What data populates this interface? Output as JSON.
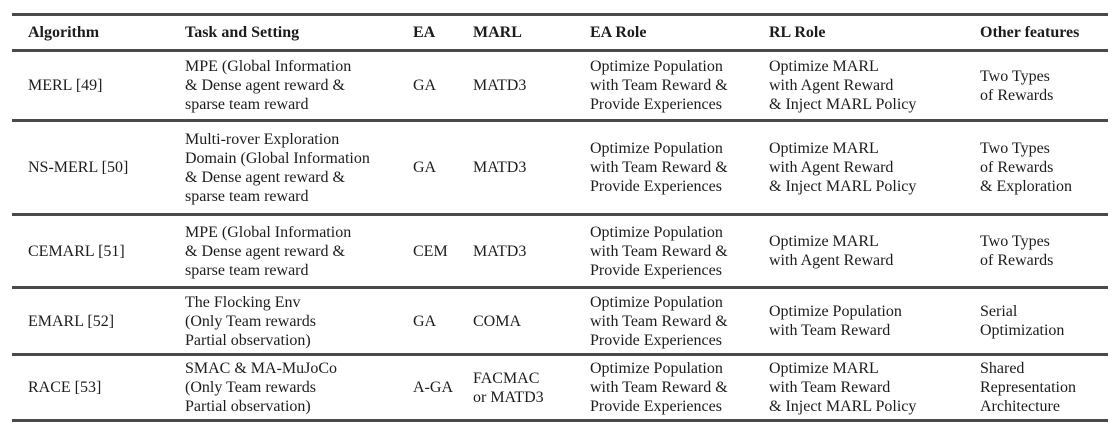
{
  "table": {
    "columns": [
      "Algorithm",
      "Task and Setting",
      "EA",
      "MARL",
      "EA Role",
      "RL Role",
      "Other features"
    ],
    "rows": [
      {
        "algorithm": "MERL [49]",
        "task": "MPE (Global Information\n& Dense agent reward &\nsparse team reward",
        "ea": "GA",
        "marl": "MATD3",
        "ea_role": "Optimize Population\nwith Team Reward &\nProvide Experiences",
        "rl_role": "Optimize MARL\nwith Agent Reward\n& Inject MARL Policy",
        "other": "Two Types\nof Rewards"
      },
      {
        "algorithm": "NS-MERL [50]",
        "task": "Multi-rover Exploration\nDomain (Global Information\n& Dense agent reward &\nsparse team reward",
        "ea": "GA",
        "marl": "MATD3",
        "ea_role": "Optimize Population\nwith Team Reward &\nProvide Experiences",
        "rl_role": "Optimize MARL\nwith Agent Reward\n& Inject MARL Policy",
        "other": "Two Types\nof Rewards\n& Exploration"
      },
      {
        "algorithm": "CEMARL [51]",
        "task": "MPE (Global Information\n& Dense agent reward &\nsparse team reward",
        "ea": "CEM",
        "marl": "MATD3",
        "ea_role": "Optimize Population\nwith Team Reward &\nProvide Experiences",
        "rl_role": "Optimize MARL\nwith Agent Reward",
        "other": "Two Types\nof Rewards"
      },
      {
        "algorithm": "EMARL [52]",
        "task": "The Flocking Env\n(Only Team rewards\nPartial observation)",
        "ea": "GA",
        "marl": "COMA",
        "ea_role": "Optimize Population\nwith Team Reward &\nProvide Experiences",
        "rl_role": "Optimize Population\nwith Team Reward",
        "other": "Serial\nOptimization"
      },
      {
        "algorithm": "RACE [53]",
        "task": "SMAC & MA-MuJoCo\n(Only Team rewards\nPartial observation)",
        "ea": "A-GA",
        "marl": "FACMAC\nor MATD3",
        "ea_role": "Optimize Population\nwith Team Reward &\nProvide Experiences",
        "rl_role": "Optimize MARL\nwith Team Reward\n& Inject MARL Policy",
        "other": "Shared\nRepresentation\nArchitecture"
      }
    ]
  }
}
